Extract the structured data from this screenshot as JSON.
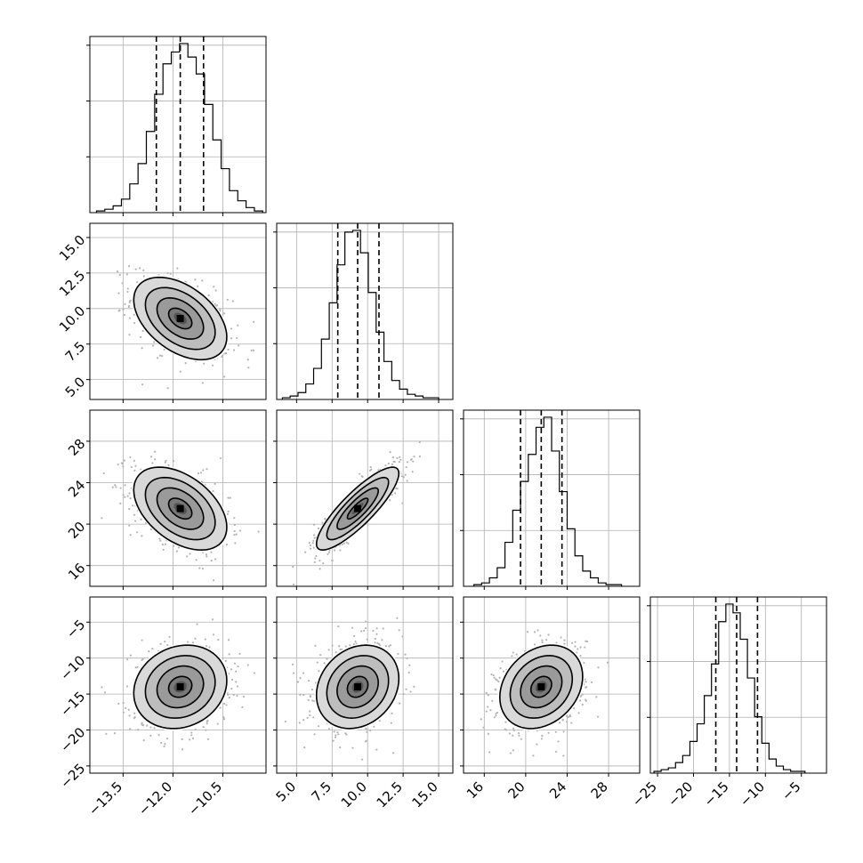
{
  "chart_data": {
    "type": "corner",
    "title": "",
    "description_level": "posterior corner plot of 4 parameters",
    "n_params": 4,
    "params": [
      {
        "label": "",
        "range": [
          -14.5,
          -9.2
        ],
        "ticks": [
          -13.5,
          -12.0,
          -10.5
        ],
        "tick_labels": [
          "−13.5",
          "−12.0",
          "−10.5"
        ],
        "quantiles": [
          -12.5,
          -11.78,
          -11.08
        ],
        "median": -11.78,
        "sigma": 0.7,
        "hist_bins_edges_start": -14.3,
        "hist_bin_width": 0.25,
        "hist_values": [
          1,
          2,
          4,
          8,
          17,
          29,
          48,
          70,
          88,
          95,
          100,
          92,
          82,
          64,
          43,
          26,
          13,
          7,
          3,
          1
        ]
      },
      {
        "label": "",
        "range": [
          3.6,
          16.0
        ],
        "ticks": [
          5.0,
          7.5,
          10.0,
          12.5,
          15.0
        ],
        "tick_labels": [
          "5.0",
          "7.5",
          "10.0",
          "12.5",
          "15.0"
        ],
        "quantiles": [
          7.9,
          9.3,
          10.8
        ],
        "median": 9.3,
        "sigma": 1.45,
        "hist_bins_edges_start": 4.0,
        "hist_bin_width": 0.55,
        "hist_values": [
          1,
          2,
          4,
          9,
          18,
          35,
          56,
          78,
          97,
          98,
          85,
          62,
          39,
          22,
          11,
          6,
          3,
          2,
          1,
          1
        ]
      },
      {
        "label": "",
        "range": [
          14.0,
          31.0
        ],
        "ticks": [
          16,
          20,
          24,
          28
        ],
        "tick_labels": [
          "16",
          "20",
          "24",
          "28"
        ],
        "quantiles": [
          19.5,
          21.5,
          23.5
        ],
        "median": 21.5,
        "sigma": 2.0,
        "hist_bins_edges_start": 15.0,
        "hist_bin_width": 0.75,
        "hist_values": [
          1,
          2,
          5,
          11,
          26,
          45,
          62,
          78,
          94,
          100,
          80,
          56,
          34,
          18,
          9,
          5,
          2,
          1,
          1
        ]
      },
      {
        "label": "",
        "range": [
          -26.0,
          -1.5
        ],
        "ticks": [
          -25,
          -20,
          -15,
          -10,
          -5
        ],
        "tick_labels": [
          "−25",
          "−20",
          "−15",
          "−10",
          "−5"
        ],
        "quantiles": [
          -16.9,
          -14.0,
          -11.1
        ],
        "median": -14.0,
        "sigma": 2.9,
        "hist_bins_edges_start": -25.5,
        "hist_bin_width": 1.0,
        "hist_values": [
          1,
          2,
          3,
          6,
          10,
          18,
          28,
          44,
          62,
          86,
          96,
          91,
          76,
          54,
          32,
          17,
          8,
          4,
          2,
          1,
          1
        ]
      }
    ],
    "correlations": [
      {
        "pair": [
          0,
          1
        ],
        "rho": -0.45
      },
      {
        "pair": [
          0,
          2
        ],
        "rho": -0.45
      },
      {
        "pair": [
          1,
          2
        ],
        "rho": 0.85
      },
      {
        "pair": [
          0,
          3
        ],
        "rho": 0.15
      },
      {
        "pair": [
          1,
          3
        ],
        "rho": 0.2
      },
      {
        "pair": [
          2,
          3
        ],
        "rho": 0.25
      }
    ],
    "contour_levels_sigma": [
      0.5,
      1.0,
      1.5,
      2.0
    ],
    "quantile_lines": "dashed",
    "grid": true,
    "colors": {
      "line": "#000000",
      "grid": "#b0b0b0",
      "points": "#b4b4b4"
    }
  }
}
